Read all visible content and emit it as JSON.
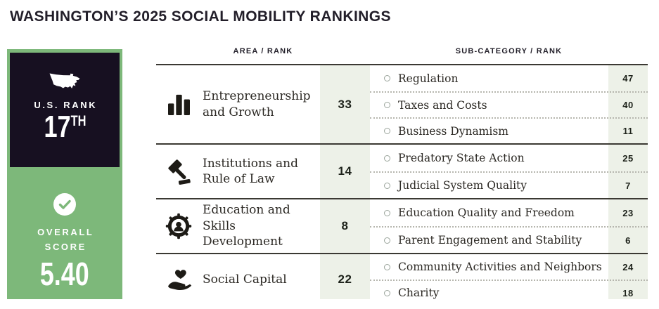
{
  "title": "WASHINGTON’S 2025 SOCIAL MOBILITY RANKINGS",
  "colors": {
    "green": "#7db87a",
    "dark": "#171021",
    "stripe": "#edf1e8",
    "line": "#3b3933"
  },
  "scorecard": {
    "us_rank_label": "U.S. RANK",
    "us_rank_value": "17",
    "us_rank_suffix": "TH",
    "us_rank_icon": "usa-map-icon",
    "overall_score_label_line1": "OVERALL",
    "overall_score_label_line2": "SCORE",
    "overall_score_value": "5.40",
    "overall_score_icon": "check-circle-icon"
  },
  "table": {
    "headers": {
      "area": "AREA / RANK",
      "sub": "SUB-CATEGORY / RANK"
    },
    "rows": [
      {
        "icon": "bar-chart-icon",
        "area": "Entrepreneurship and Growth",
        "rank": "33",
        "subs": [
          {
            "label": "Regulation",
            "rank": "47"
          },
          {
            "label": "Taxes and Costs",
            "rank": "40"
          },
          {
            "label": "Business Dynamism",
            "rank": "11"
          }
        ]
      },
      {
        "icon": "gavel-icon",
        "area": "Institutions and Rule of Law",
        "rank": "14",
        "subs": [
          {
            "label": "Predatory State Action",
            "rank": "25"
          },
          {
            "label": "Judicial System Quality",
            "rank": "7"
          }
        ]
      },
      {
        "icon": "gear-person-icon",
        "area": "Education and Skills Development",
        "rank": "8",
        "subs": [
          {
            "label": "Education Quality and Freedom",
            "rank": "23"
          },
          {
            "label": "Parent Engagement and Stability",
            "rank": "6"
          }
        ]
      },
      {
        "icon": "heart-hand-icon",
        "area": "Social Capital",
        "rank": "22",
        "subs": [
          {
            "label": "Community Activities and Neighbors",
            "rank": "24"
          },
          {
            "label": "Charity",
            "rank": "18"
          }
        ]
      }
    ]
  }
}
